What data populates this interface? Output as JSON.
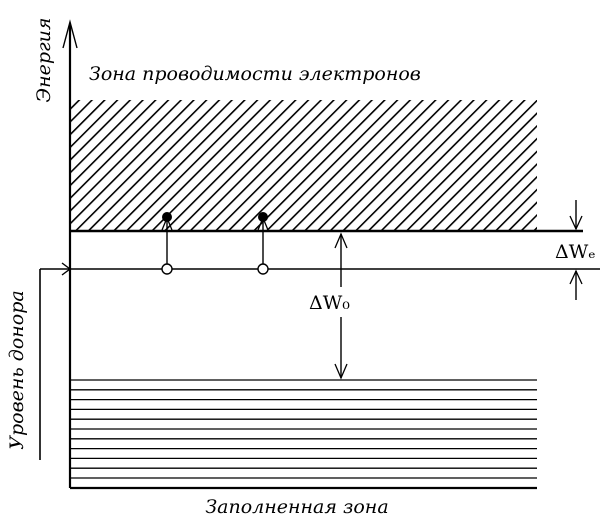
{
  "labels": {
    "y_axis": "Энергия",
    "donor_level": "Уровень донора",
    "conduction_band": "Зона проводимости электронов",
    "valence_band": "Заполненная зона",
    "delta_w0": "ΔW₀",
    "delta_we": "ΔWₑ"
  },
  "diagram": {
    "electron_transitions": 2,
    "valence_band_lines": 11
  },
  "colors": {
    "ink": "#000000",
    "background": "#ffffff"
  }
}
